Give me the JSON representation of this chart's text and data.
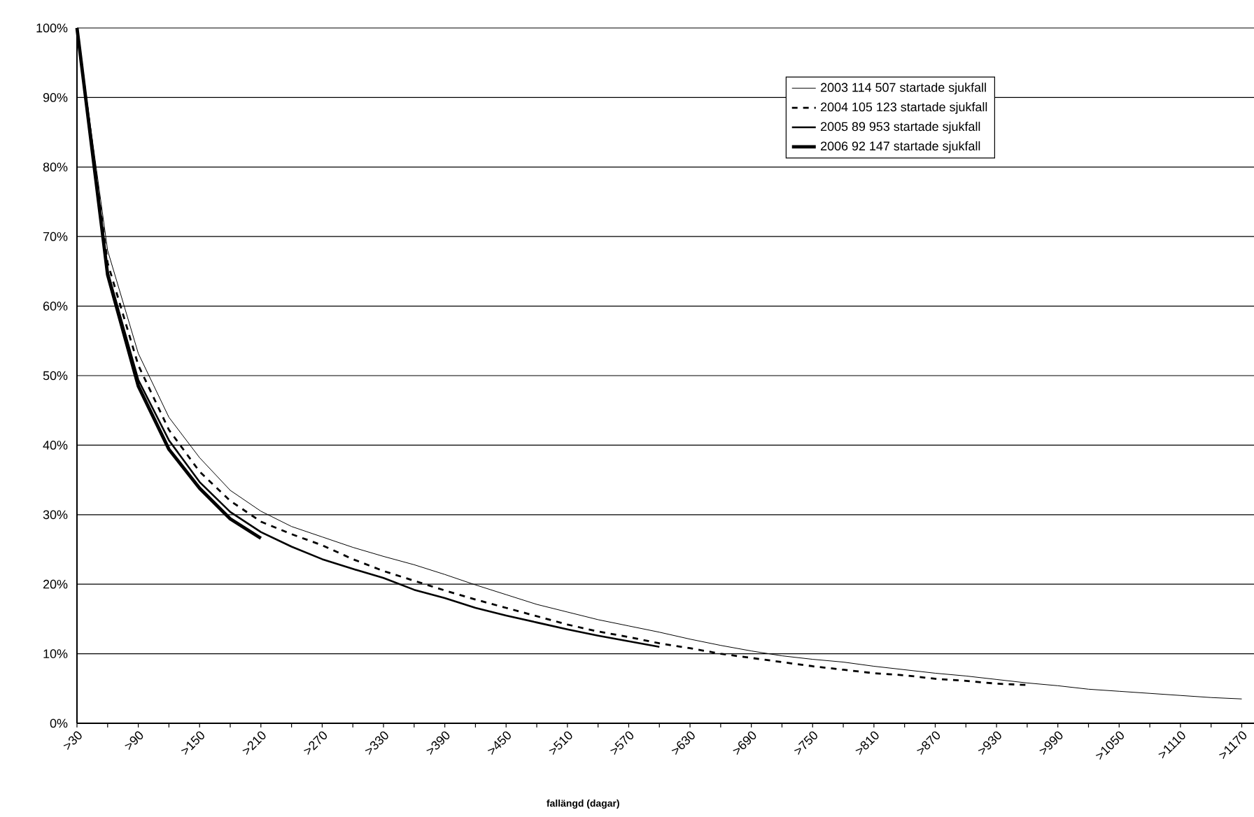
{
  "chart_data": {
    "type": "line",
    "xlabel": "fallängd (dagar)",
    "categories": [
      ">30",
      null,
      ">90",
      null,
      ">150",
      null,
      ">210",
      null,
      ">270",
      null,
      ">330",
      null,
      ">390",
      null,
      ">450",
      null,
      ">510",
      null,
      ">570",
      null,
      ">630",
      null,
      ">690",
      null,
      ">750",
      null,
      ">810",
      null,
      ">870",
      null,
      ">930",
      null,
      ">990",
      null,
      ">1050",
      null,
      ">1110",
      null,
      ">1170"
    ],
    "ylim": [
      0,
      100
    ],
    "yticks": [
      {
        "value": 0,
        "label": "0%"
      },
      {
        "value": 10,
        "label": "10%"
      },
      {
        "value": 20,
        "label": "20%"
      },
      {
        "value": 30,
        "label": "30%"
      },
      {
        "value": 40,
        "label": "40%"
      },
      {
        "value": 50,
        "label": "50%"
      },
      {
        "value": 60,
        "label": "60%"
      },
      {
        "value": 70,
        "label": "70%"
      },
      {
        "value": 80,
        "label": "80%"
      },
      {
        "value": 90,
        "label": "90%"
      },
      {
        "value": 100,
        "label": "100%"
      }
    ],
    "grid": "y",
    "legend": "top right",
    "marker": "none",
    "series": [
      {
        "name": "2003 114 507 startade sjukfall",
        "color": "#000000",
        "line_style": "solid",
        "values": [
          100,
          68.0,
          53.2,
          44.0,
          38.2,
          33.5,
          30.5,
          28.3,
          26.8,
          25.3,
          24.0,
          22.8,
          21.4,
          19.9,
          18.5,
          17.1,
          16.0,
          14.9,
          14.0,
          13.1,
          12.1,
          11.2,
          10.4,
          9.7,
          9.2,
          8.8,
          8.2,
          7.7,
          7.2,
          6.8,
          6.3,
          5.8,
          5.4,
          4.9,
          4.6,
          4.3,
          4.0,
          3.7,
          3.5
        ]
      },
      {
        "name": "2004 105 123 startade sjukfall",
        "color": "#000000",
        "line_style": "dashed",
        "values": [
          100,
          66.2,
          51.5,
          42.2,
          36.2,
          32.0,
          29.0,
          27.2,
          25.6,
          23.6,
          21.9,
          20.5,
          19.1,
          17.8,
          16.6,
          15.4,
          14.2,
          13.2,
          12.4,
          11.5,
          10.8,
          10.0,
          9.4,
          8.8,
          8.2,
          7.7,
          7.2,
          6.9,
          6.4,
          6.1,
          5.7,
          5.5,
          null,
          null,
          null,
          null,
          null,
          null,
          null
        ]
      },
      {
        "name": "2005 89 953 startade sjukfall",
        "color": "#000000",
        "line_style": "solid",
        "values": [
          100,
          65.0,
          49.4,
          40.7,
          34.7,
          30.4,
          27.5,
          25.4,
          23.6,
          22.2,
          20.9,
          19.2,
          18.0,
          16.6,
          15.5,
          14.5,
          13.5,
          12.6,
          11.8,
          11.0,
          null,
          null,
          null,
          null,
          null,
          null,
          null,
          null,
          null,
          null,
          null,
          null,
          null,
          null,
          null,
          null,
          null,
          null,
          null
        ]
      },
      {
        "name": "2006 92 147 startade sjukfall",
        "color": "#000000",
        "line_style": "solid",
        "values": [
          100,
          64.5,
          48.5,
          39.4,
          33.8,
          29.4,
          26.6,
          null,
          null,
          null,
          null,
          null,
          null,
          null,
          null,
          null,
          null,
          null,
          null,
          null,
          null,
          null,
          null,
          null,
          null,
          null,
          null,
          null,
          null,
          null,
          null,
          null,
          null,
          null,
          null,
          null,
          null,
          null,
          null
        ]
      }
    ]
  }
}
